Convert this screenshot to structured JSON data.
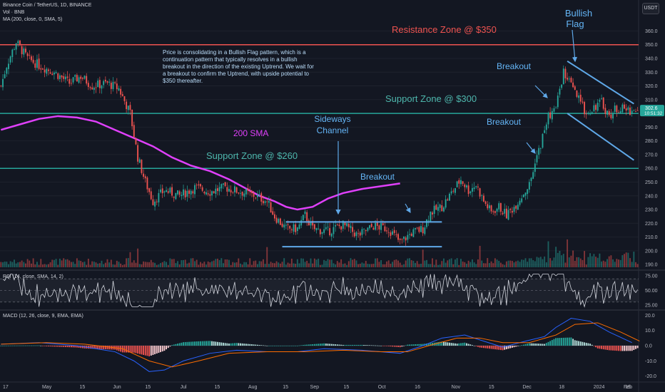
{
  "header": {
    "symbol_line": "Binance Coin / TetherUS, 1D, BINANCE",
    "vol_line": "Vol · BNB",
    "ma_line": "MA (200, close, 0, SMA, 5)"
  },
  "quote_currency": "USDT",
  "current_price_label": "302.6",
  "countdown_label": "10:51:32",
  "colors": {
    "background": "#131722",
    "up": "#26a69a",
    "down": "#ef5350",
    "sma": "#e040fb",
    "trend_lines": "#5fa8e8",
    "support": "#26a69a",
    "resistance": "#ef5350",
    "macd": "#2962ff",
    "signal": "#ff6d00"
  },
  "annotations": {
    "note": "Price is consolidating in a Bullish Flag pattern, which is a continuation pattern that typically resolves in a bullish breakout in the direction of the existing Uptrend. We wait for a breakout to confirm the Uptrend, with upside potential to $350 thereafter.",
    "resistance": "Resistance Zone @ $350",
    "support_300": "Support Zone @ $300",
    "support_260": "Support Zone @ $260",
    "sma_label": "200 SMA",
    "sideways": [
      "Sideways",
      "Channel"
    ],
    "breakout": "Breakout",
    "flag": [
      "Bullish",
      "Flag"
    ]
  },
  "chart_data": [
    {
      "type": "candlestick",
      "ylim": [
        188,
        368
      ],
      "y_ticks": [
        "360.0",
        "350.0",
        "340.0",
        "330.0",
        "320.0",
        "310.0",
        "300.0",
        "290.0",
        "280.0",
        "270.0",
        "260.0",
        "250.0",
        "240.0",
        "230.0",
        "220.0",
        "210.0",
        "200.0",
        "190.0"
      ],
      "x_ticks": [
        "17",
        "May",
        "15",
        "Jun",
        "15",
        "Jul",
        "15",
        "Aug",
        "15",
        "Sep",
        "15",
        "Oct",
        "16",
        "Nov",
        "15",
        "Dec",
        "18",
        "2024",
        "15",
        "Feb"
      ],
      "price_path": [
        [
          0,
          320
        ],
        [
          3,
          335
        ],
        [
          8,
          352
        ],
        [
          14,
          340
        ],
        [
          20,
          335
        ],
        [
          28,
          330
        ],
        [
          36,
          322
        ],
        [
          42,
          327
        ],
        [
          48,
          320
        ],
        [
          56,
          322
        ],
        [
          62,
          318
        ],
        [
          68,
          300
        ],
        [
          72,
          268
        ],
        [
          76,
          250
        ],
        [
          80,
          236
        ],
        [
          86,
          244
        ],
        [
          94,
          240
        ],
        [
          102,
          246
        ],
        [
          110,
          243
        ],
        [
          118,
          246
        ],
        [
          126,
          243
        ],
        [
          134,
          240
        ],
        [
          140,
          236
        ],
        [
          144,
          225
        ],
        [
          150,
          216
        ],
        [
          156,
          216
        ],
        [
          160,
          226
        ],
        [
          164,
          216
        ],
        [
          172,
          214
        ],
        [
          180,
          219
        ],
        [
          188,
          211
        ],
        [
          196,
          218
        ],
        [
          204,
          216
        ],
        [
          210,
          206
        ],
        [
          216,
          213
        ],
        [
          222,
          216
        ],
        [
          226,
          228
        ],
        [
          232,
          232
        ],
        [
          238,
          244
        ],
        [
          242,
          252
        ],
        [
          246,
          244
        ],
        [
          250,
          248
        ],
        [
          254,
          236
        ],
        [
          258,
          228
        ],
        [
          262,
          232
        ],
        [
          266,
          226
        ],
        [
          270,
          232
        ],
        [
          274,
          240
        ],
        [
          278,
          248
        ],
        [
          280,
          258
        ],
        [
          282,
          268
        ],
        [
          284,
          278
        ],
        [
          288,
          298
        ],
        [
          292,
          304
        ],
        [
          294,
          318
        ],
        [
          296,
          330
        ],
        [
          300,
          320
        ],
        [
          304,
          310
        ],
        [
          308,
          300
        ],
        [
          312,
          305
        ],
        [
          316,
          308
        ],
        [
          320,
          298
        ],
        [
          324,
          304
        ],
        [
          328,
          303
        ],
        [
          332,
          302
        ]
      ],
      "volume_bar_count": 170,
      "sma_200": [
        [
          0,
          288
        ],
        [
          10,
          292
        ],
        [
          20,
          296
        ],
        [
          30,
          298
        ],
        [
          40,
          297
        ],
        [
          50,
          294
        ],
        [
          60,
          288
        ],
        [
          70,
          282
        ],
        [
          80,
          276
        ],
        [
          90,
          268
        ],
        [
          100,
          262
        ],
        [
          110,
          258
        ],
        [
          120,
          252
        ],
        [
          128,
          246
        ],
        [
          136,
          240
        ],
        [
          144,
          236
        ],
        [
          150,
          232
        ],
        [
          156,
          230
        ],
        [
          164,
          232
        ],
        [
          172,
          238
        ],
        [
          180,
          242
        ],
        [
          190,
          245
        ],
        [
          200,
          247
        ],
        [
          210,
          249
        ]
      ],
      "levels": {
        "resistance": 350,
        "support_high": 300,
        "support_low": 260
      },
      "sideways_channel": {
        "top": 221,
        "bottom": 203
      },
      "flag": {
        "upper": [
          [
            298,
            338
          ],
          [
            333,
            307
          ]
        ],
        "lower": [
          [
            298,
            300
          ],
          [
            333,
            266
          ]
        ]
      }
    },
    {
      "type": "line",
      "title": "RSI (14, close, SMA, 14, 2)",
      "ylim": [
        20,
        80
      ],
      "y_ticks": [
        "75.00",
        "50.00",
        "25.00"
      ],
      "bands": [
        70,
        30
      ]
    },
    {
      "type": "histogram",
      "title": "MACD (12, 26, close, 9, EMA, EMA)",
      "ylim": [
        -22,
        22
      ],
      "y_ticks": [
        "20.0",
        "10.0",
        "0.0",
        "-10.0",
        "-20.0"
      ],
      "macd_path": [
        [
          0,
          1
        ],
        [
          20,
          2
        ],
        [
          40,
          0
        ],
        [
          60,
          -4
        ],
        [
          70,
          -10
        ],
        [
          78,
          -17
        ],
        [
          86,
          -16
        ],
        [
          96,
          -10
        ],
        [
          110,
          -5
        ],
        [
          124,
          -3
        ],
        [
          140,
          -4
        ],
        [
          156,
          -4
        ],
        [
          170,
          -2
        ],
        [
          190,
          -3
        ],
        [
          210,
          -5
        ],
        [
          222,
          0
        ],
        [
          232,
          5
        ],
        [
          244,
          7
        ],
        [
          254,
          3
        ],
        [
          264,
          -1
        ],
        [
          276,
          3
        ],
        [
          286,
          6
        ],
        [
          292,
          12
        ],
        [
          300,
          18
        ],
        [
          310,
          16
        ],
        [
          320,
          9
        ],
        [
          332,
          2
        ]
      ],
      "signal_path": [
        [
          0,
          1
        ],
        [
          24,
          2
        ],
        [
          44,
          1
        ],
        [
          64,
          -2
        ],
        [
          78,
          -10
        ],
        [
          90,
          -14
        ],
        [
          104,
          -10
        ],
        [
          120,
          -5
        ],
        [
          140,
          -4
        ],
        [
          160,
          -4
        ],
        [
          180,
          -3
        ],
        [
          200,
          -4
        ],
        [
          214,
          -4
        ],
        [
          228,
          1
        ],
        [
          240,
          5
        ],
        [
          252,
          5
        ],
        [
          264,
          2
        ],
        [
          278,
          2
        ],
        [
          292,
          7
        ],
        [
          302,
          14
        ],
        [
          314,
          15
        ],
        [
          326,
          9
        ],
        [
          336,
          3
        ]
      ]
    }
  ]
}
